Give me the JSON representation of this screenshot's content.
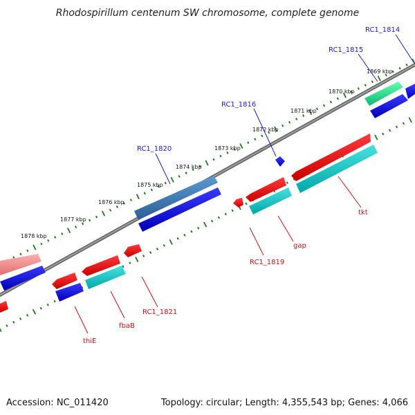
{
  "title": "Rhodospirillum centenum SW chromosome, complete genome",
  "footer": {
    "accession": "Accession: NC_011420",
    "summary": "Topology: circular; Length: 4,355,543 bp; Genes: 4,066"
  },
  "colors": {
    "backbone": "#7a7a7a",
    "ticks": "#1f7a1f",
    "label_blue": "#1a1ad8",
    "label_red": "#cc1111"
  },
  "ruler": [
    "1869 kbp",
    "1870 kbp",
    "1871 kbp",
    "1872 kbp",
    "1873 kbp",
    "1874 kbp",
    "1875 kbp",
    "1876 kbp",
    "1877 kbp",
    "1878 kbp"
  ],
  "gene_labels": {
    "RC1_1814": "RC1_1814",
    "RC1_1815": "RC1_1815",
    "RC1_1816": "RC1_1816",
    "RC1_1820": "RC1_1820",
    "tkt": "tkt",
    "gap": "gap",
    "RC1_1819": "RC1_1819",
    "RC1_1821": "RC1_1821",
    "fbaB": "fbaB",
    "thiE": "thiE"
  }
}
